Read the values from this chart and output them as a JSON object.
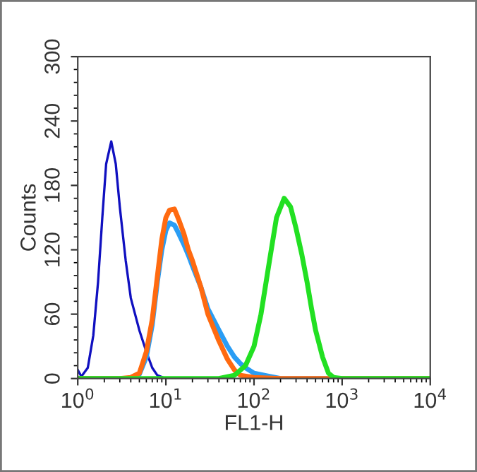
{
  "chart_data": {
    "type": "line",
    "xlabel": "FL1-H",
    "ylabel": "Counts",
    "log": "x",
    "xlim": [
      1,
      10000
    ],
    "ylim": [
      0,
      300
    ],
    "xticks": [
      {
        "value": 1,
        "label": "10$^{0}$"
      },
      {
        "value": 10,
        "label": "10$^{1}$"
      },
      {
        "value": 100,
        "label": "10$^{2}$"
      },
      {
        "value": 1000,
        "label": "10$^{3}$"
      },
      {
        "value": 10000,
        "label": "10$^{4}$"
      }
    ],
    "yticks": [
      0,
      60,
      120,
      180,
      240,
      300
    ],
    "grid": false,
    "legend": false,
    "marker": "none",
    "line_style": "solid",
    "series": [
      {
        "color": "#1010c0",
        "x": [
          1.0,
          1.1,
          1.3,
          1.5,
          1.7,
          1.9,
          2.1,
          2.4,
          2.7,
          3.0,
          3.5,
          4.0,
          5,
          6,
          7,
          8,
          10,
          20
        ],
        "values": [
          8,
          2,
          10,
          40,
          90,
          150,
          200,
          221,
          200,
          160,
          110,
          75,
          45,
          25,
          10,
          3,
          0,
          0
        ]
      },
      {
        "color": "#2a9df4",
        "x": [
          1,
          4,
          5,
          6,
          7,
          8,
          9,
          10,
          11,
          12.5,
          14,
          16,
          18,
          20,
          25,
          30,
          40,
          50,
          60,
          70,
          80,
          100,
          150,
          200,
          10000
        ],
        "values": [
          0,
          0,
          4,
          20,
          50,
          90,
          120,
          138,
          145,
          143,
          135,
          125,
          115,
          105,
          85,
          65,
          45,
          30,
          20,
          14,
          10,
          5,
          2,
          0,
          0
        ]
      },
      {
        "color": "#ff6a10",
        "x": [
          1,
          3,
          4,
          5,
          6,
          7,
          8,
          9,
          10,
          11,
          12.5,
          14,
          16,
          18,
          20,
          25,
          30,
          40,
          50,
          60,
          70,
          100,
          200,
          1000,
          10000
        ],
        "values": [
          0,
          0,
          1,
          5,
          25,
          55,
          95,
          130,
          150,
          157,
          158,
          148,
          135,
          120,
          110,
          85,
          60,
          35,
          18,
          8,
          3,
          1,
          0,
          0,
          0
        ]
      },
      {
        "color": "#22e022",
        "x": [
          1,
          40,
          60,
          80,
          100,
          120,
          150,
          180,
          220,
          260,
          300,
          350,
          400,
          450,
          500,
          600,
          700,
          800,
          1000,
          10000
        ],
        "values": [
          0,
          0,
          3,
          12,
          30,
          60,
          110,
          150,
          168,
          160,
          140,
          115,
          90,
          65,
          45,
          20,
          5,
          1,
          0,
          0
        ]
      }
    ]
  }
}
